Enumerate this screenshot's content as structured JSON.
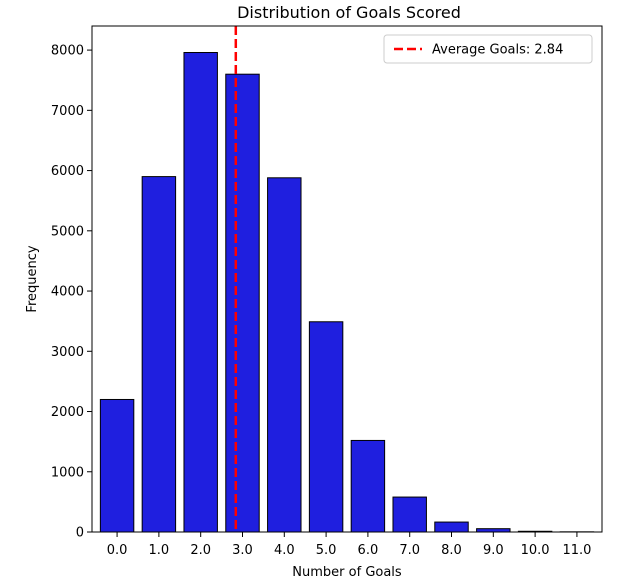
{
  "chart_data": {
    "type": "bar",
    "title": "Distribution of Goals Scored",
    "xlabel": "Number of Goals",
    "ylabel": "Frequency",
    "categories": [
      "0.0",
      "1.0",
      "2.0",
      "3.0",
      "4.0",
      "5.0",
      "6.0",
      "7.0",
      "8.0",
      "9.0",
      "10.0",
      "11.0"
    ],
    "x": [
      0,
      1,
      2,
      3,
      4,
      5,
      6,
      7,
      8,
      9,
      10,
      11
    ],
    "values": [
      2200,
      5900,
      7960,
      7600,
      5880,
      3490,
      1520,
      580,
      165,
      55,
      12,
      3
    ],
    "bar_color": "#1f1fdf",
    "bar_edge_color": "#000000",
    "ylim": [
      0,
      8400
    ],
    "xlim": [
      -0.6,
      11.6
    ],
    "yticks": [
      0,
      1000,
      2000,
      3000,
      4000,
      5000,
      6000,
      7000,
      8000
    ],
    "grid": false,
    "average_line": {
      "value": 2.84,
      "label": "Average Goals: 2.84",
      "color": "#ff0000",
      "style": "dashed"
    },
    "legend": {
      "position": "top-right",
      "entries": [
        "Average Goals: 2.84"
      ]
    }
  }
}
